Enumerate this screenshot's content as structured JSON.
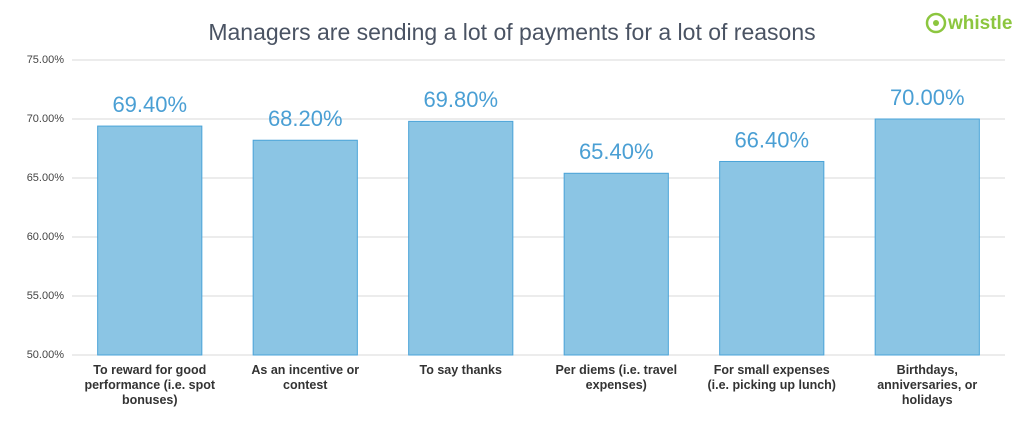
{
  "chart_data": {
    "type": "bar",
    "title": "Managers are sending a lot of payments for a lot of reasons",
    "logo": "whistle",
    "categories": [
      "To reward for good performance (i.e. spot bonuses)",
      "As an incentive or contest",
      "To say thanks",
      "Per diems (i.e. travel expenses)",
      "For small expenses (i.e. picking up lunch)",
      "Birthdays, anniversaries, or holidays"
    ],
    "values": [
      69.4,
      68.2,
      69.8,
      65.4,
      66.4,
      70.0
    ],
    "value_labels": [
      "69.40%",
      "68.20%",
      "69.80%",
      "65.40%",
      "66.40%",
      "70.00%"
    ],
    "color": "#8bc5e4",
    "ylim": [
      50,
      75
    ],
    "yticks": [
      {
        "value": 50,
        "label": "50.00%"
      },
      {
        "value": 55,
        "label": "55.00%"
      },
      {
        "value": 60,
        "label": "60.00%"
      },
      {
        "value": 65,
        "label": "65.00%"
      },
      {
        "value": 70,
        "label": "70.00%"
      },
      {
        "value": 75,
        "label": "75.00%"
      }
    ],
    "grid": true
  }
}
